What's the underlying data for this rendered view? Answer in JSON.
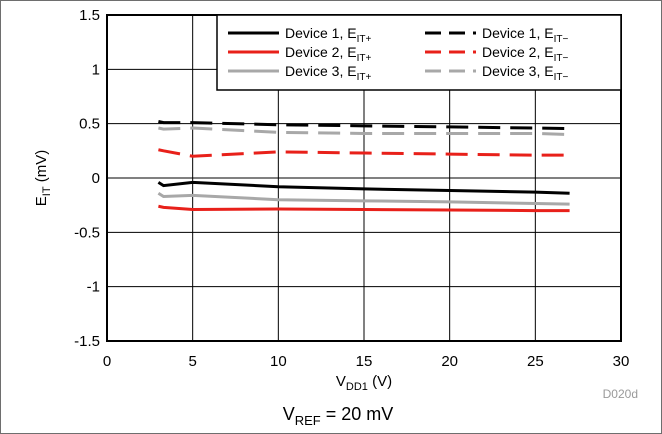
{
  "chart_data": {
    "type": "line",
    "xlabel": "VDD1 (V)",
    "ylabel": "EIT (mV)",
    "xlim": [
      0,
      30
    ],
    "ylim": [
      -1.5,
      1.5
    ],
    "x_ticks": [
      "0",
      "5",
      "10",
      "15",
      "20",
      "25",
      "30"
    ],
    "y_ticks": [
      "1.5",
      "1",
      "0.5",
      "0",
      "-0.5",
      "-1",
      "-1.5"
    ],
    "grid": true,
    "legend_position": "top-right",
    "series": [
      {
        "name": "Device 1, EIT+",
        "color": "#000000",
        "dash": "solid",
        "x": [
          3,
          3.3,
          5,
          10,
          15,
          20,
          25,
          27
        ],
        "y": [
          -0.04,
          -0.07,
          -0.04,
          -0.08,
          -0.1,
          -0.115,
          -0.13,
          -0.14
        ]
      },
      {
        "name": "Device 1, EIT−",
        "color": "#000000",
        "dash": "dashed",
        "x": [
          3,
          3.3,
          5,
          10,
          15,
          20,
          25,
          27
        ],
        "y": [
          0.52,
          0.51,
          0.51,
          0.49,
          0.48,
          0.47,
          0.46,
          0.455
        ]
      },
      {
        "name": "Device 2, EIT+",
        "color": "#e8201a",
        "dash": "solid",
        "x": [
          3,
          3.3,
          5,
          10,
          15,
          20,
          25,
          27
        ],
        "y": [
          -0.26,
          -0.27,
          -0.29,
          -0.285,
          -0.29,
          -0.295,
          -0.3,
          -0.3
        ]
      },
      {
        "name": "Device 2, EIT−",
        "color": "#e8201a",
        "dash": "dashed",
        "x": [
          3,
          3.3,
          5,
          10,
          15,
          20,
          25,
          27
        ],
        "y": [
          0.26,
          0.25,
          0.2,
          0.24,
          0.23,
          0.22,
          0.21,
          0.21
        ]
      },
      {
        "name": "Device 3, EIT+",
        "color": "#a8a8a8",
        "dash": "solid",
        "x": [
          3,
          3.3,
          5,
          10,
          15,
          20,
          25,
          27
        ],
        "y": [
          -0.14,
          -0.17,
          -0.16,
          -0.2,
          -0.21,
          -0.22,
          -0.235,
          -0.24
        ]
      },
      {
        "name": "Device 3, EIT−",
        "color": "#a8a8a8",
        "dash": "dashed",
        "x": [
          3,
          3.3,
          5,
          10,
          15,
          20,
          25,
          27
        ],
        "y": [
          0.46,
          0.45,
          0.46,
          0.42,
          0.41,
          0.41,
          0.41,
          0.4
        ]
      }
    ]
  },
  "figure_code": "D020d",
  "caption": {
    "main": "V",
    "sub": "REF",
    "rest": " = 20 mV"
  },
  "labels": {
    "x": {
      "main": "V",
      "sub": "DD1",
      "rest": " (V)"
    },
    "y": {
      "main": "E",
      "sub": "IT",
      "rest": " (mV)"
    }
  }
}
